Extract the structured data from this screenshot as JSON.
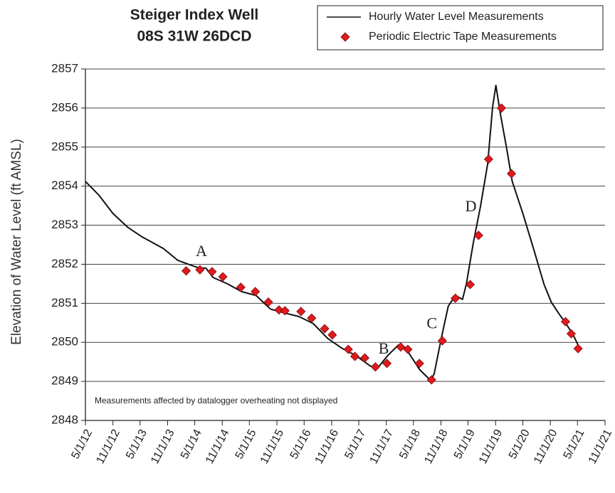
{
  "chart_data": {
    "type": "line",
    "title": "Steiger Index Well",
    "subtitle": "08S 31W 26DCD",
    "y_label": "Elevation of Water Level (ft AMSL)",
    "note": "Measurements affected by datalogger overheating not displayed",
    "xlim": [
      "2012-05-01",
      "2021-11-01"
    ],
    "xticks": [
      {
        "value": "2012-05-01",
        "label": "5/1/12"
      },
      {
        "value": "2012-11-01",
        "label": "11/1/12"
      },
      {
        "value": "2013-05-01",
        "label": "5/1/13"
      },
      {
        "value": "2013-11-01",
        "label": "11/1/13"
      },
      {
        "value": "2014-05-01",
        "label": "5/1/14"
      },
      {
        "value": "2014-11-01",
        "label": "11/1/14"
      },
      {
        "value": "2015-05-01",
        "label": "5/1/15"
      },
      {
        "value": "2015-11-01",
        "label": "11/1/15"
      },
      {
        "value": "2016-05-01",
        "label": "5/1/16"
      },
      {
        "value": "2016-11-01",
        "label": "11/1/16"
      },
      {
        "value": "2017-05-01",
        "label": "5/1/17"
      },
      {
        "value": "2017-11-01",
        "label": "11/1/17"
      },
      {
        "value": "2018-05-01",
        "label": "5/1/18"
      },
      {
        "value": "2018-11-01",
        "label": "11/1/18"
      },
      {
        "value": "2019-05-01",
        "label": "5/1/19"
      },
      {
        "value": "2019-11-01",
        "label": "11/1/19"
      },
      {
        "value": "2020-05-01",
        "label": "5/1/20"
      },
      {
        "value": "2020-11-01",
        "label": "11/1/20"
      },
      {
        "value": "2021-05-01",
        "label": "5/1/21"
      },
      {
        "value": "2021-11-01",
        "label": "11/1/21"
      }
    ],
    "ylim": [
      2848,
      2857
    ],
    "yticks": [
      2848,
      2849,
      2850,
      2851,
      2852,
      2853,
      2854,
      2855,
      2856,
      2857
    ],
    "grid": "y",
    "legend": "top-right",
    "series": [
      {
        "name": "Hourly Water Level Measurements",
        "color": "#111111",
        "x": [
          "2012-05-01",
          "2012-08-01",
          "2012-11-01",
          "2013-02-10",
          "2013-05-15",
          "2013-10-05",
          "2014-01-08",
          "2014-03-20",
          "2014-06-01",
          "2014-07-15",
          "2014-09-01",
          "2014-12-05",
          "2015-03-10",
          "2015-06-15",
          "2015-09-20",
          "2015-12-25",
          "2016-03-28",
          "2016-07-01",
          "2016-10-05",
          "2017-01-08",
          "2017-04-12",
          "2017-07-15",
          "2017-09-01",
          "2017-11-10",
          "2018-01-20",
          "2018-03-10",
          "2018-06-12",
          "2018-08-25",
          "2018-09-17",
          "2018-11-03",
          "2018-12-20",
          "2019-02-06",
          "2019-03-25",
          "2019-04-20",
          "2019-06-06",
          "2019-07-23",
          "2019-09-09",
          "2019-10-12",
          "2019-11-03",
          "2019-12-03",
          "2020-01-15",
          "2020-02-20",
          "2020-05-01",
          "2020-07-12",
          "2020-09-20",
          "2020-11-07",
          "2020-12-25",
          "2021-02-13",
          "2021-04-01",
          "2021-05-05"
        ],
        "values": [
          2854.12,
          2853.76,
          2853.3,
          2852.94,
          2852.7,
          2852.4,
          2852.1,
          2852.0,
          2851.9,
          2851.9,
          2851.66,
          2851.5,
          2851.3,
          2851.2,
          2850.85,
          2850.75,
          2850.66,
          2850.48,
          2850.1,
          2849.85,
          2849.66,
          2849.4,
          2849.33,
          2849.66,
          2849.93,
          2849.85,
          2849.3,
          2849.02,
          2849.2,
          2850.1,
          2850.93,
          2851.2,
          2851.1,
          2851.5,
          2852.57,
          2853.48,
          2854.57,
          2856.03,
          2856.58,
          2855.85,
          2854.94,
          2854.12,
          2853.3,
          2852.39,
          2851.48,
          2851.03,
          2850.75,
          2850.48,
          2850.2,
          2849.93
        ]
      },
      {
        "name": "Periodic Electric Tape Measurements",
        "color": "#e0191e",
        "marker": "diamond",
        "x": [
          "2014-03-05",
          "2014-06-05",
          "2014-08-25",
          "2014-11-05",
          "2015-03-05",
          "2015-06-10",
          "2015-09-05",
          "2015-11-15",
          "2015-12-25",
          "2016-04-10",
          "2016-06-20",
          "2016-09-15",
          "2016-11-05",
          "2017-02-20",
          "2017-04-05",
          "2017-06-10",
          "2017-08-20",
          "2017-11-05",
          "2018-02-05",
          "2018-03-25",
          "2018-06-10",
          "2018-08-30",
          "2018-11-10",
          "2019-02-05",
          "2019-05-15",
          "2019-07-10",
          "2019-09-15",
          "2019-12-10",
          "2020-02-15",
          "2021-02-10",
          "2021-03-20",
          "2021-05-05"
        ],
        "values": [
          2851.83,
          2851.86,
          2851.81,
          2851.68,
          2851.41,
          2851.3,
          2851.03,
          2850.83,
          2850.81,
          2850.79,
          2850.62,
          2850.35,
          2850.19,
          2849.82,
          2849.64,
          2849.6,
          2849.37,
          2849.46,
          2849.88,
          2849.82,
          2849.46,
          2849.04,
          2850.04,
          2851.13,
          2851.48,
          2852.74,
          2854.69,
          2856.0,
          2854.32,
          2850.53,
          2850.22,
          2849.84
        ]
      }
    ],
    "annotations": [
      {
        "text": "A",
        "x": "2014-06-15",
        "y": 2852.3
      },
      {
        "text": "B",
        "x": "2017-10-15",
        "y": 2849.8
      },
      {
        "text": "C",
        "x": "2018-09-01",
        "y": 2850.45
      },
      {
        "text": "D",
        "x": "2019-05-20",
        "y": 2853.45
      }
    ]
  }
}
